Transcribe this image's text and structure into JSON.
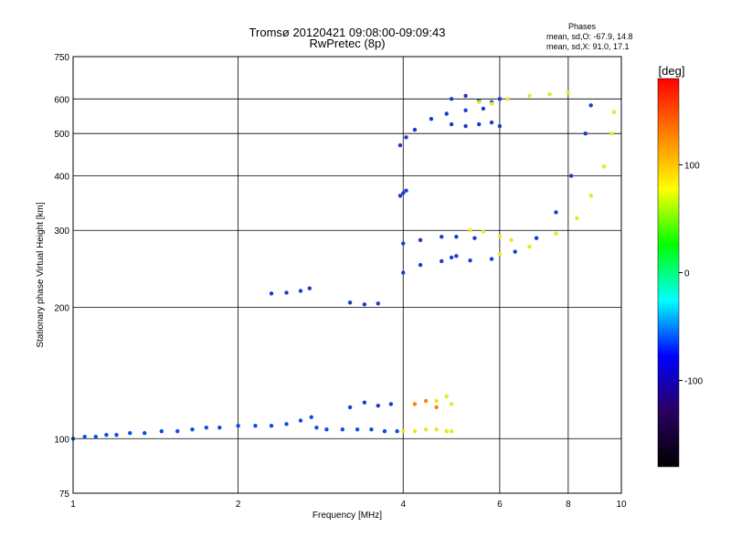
{
  "chart_data": {
    "type": "scatter",
    "title": "Tromsø 20120421 09:08:00-09:09:43",
    "subtitle": "RwPretec (8p)",
    "phases_header": "Phases",
    "phases_stats": [
      "mean, sd,O: -67.9, 14.8",
      "mean, sd,X:  91.0, 17.1"
    ],
    "xlabel": "Frequency [MHz]",
    "ylabel": "Stationary phase Virtual Height [km]",
    "x_scale": "log",
    "y_scale": "log",
    "xlim": [
      1,
      10
    ],
    "ylim": [
      75,
      750
    ],
    "x_ticks": [
      1,
      2,
      4,
      6,
      8,
      10
    ],
    "y_ticks": [
      75,
      100,
      200,
      300,
      400,
      500,
      600,
      750
    ],
    "grid": true,
    "colorbar": {
      "label": "[deg]",
      "range": [
        -180,
        180
      ],
      "ticks": [
        100,
        0,
        -100
      ],
      "colors": [
        "#000000",
        "#2a0060",
        "#0000ff",
        "#00ffff",
        "#00ff00",
        "#ffff00",
        "#ff8000",
        "#ff0000"
      ]
    },
    "series": [
      {
        "color": "#0a4fdc",
        "x": [
          1.0,
          1.05,
          1.1,
          1.15,
          1.2,
          1.27,
          1.35,
          1.45,
          1.55,
          1.65,
          1.75,
          1.85,
          2.0,
          2.15,
          2.3,
          2.45,
          2.6,
          2.72,
          2.78,
          2.9,
          3.1,
          3.3,
          3.5,
          3.7,
          3.9
        ],
        "y": [
          100,
          101,
          101,
          102,
          102,
          103,
          103,
          104,
          104,
          105,
          106,
          106,
          107,
          107,
          107,
          108,
          110,
          112,
          106,
          105,
          105,
          105,
          105,
          104,
          104
        ]
      },
      {
        "color": "#e8e820",
        "x": [
          4.0,
          4.2,
          4.4,
          4.6,
          4.8,
          4.9
        ],
        "y": [
          104,
          104,
          105,
          105,
          104,
          104
        ]
      },
      {
        "color": "#1a3ad0",
        "x": [
          2.3,
          2.45,
          2.6,
          2.7
        ],
        "y": [
          215,
          216,
          218,
          221
        ]
      },
      {
        "color": "#1a3ad0",
        "x": [
          3.2,
          3.4,
          3.6
        ],
        "y": [
          205,
          203,
          204
        ]
      },
      {
        "color": "#1a3ad0",
        "x": [
          3.95,
          4.05,
          4.2,
          4.5,
          4.8,
          5.2,
          5.6
        ],
        "y": [
          470,
          490,
          510,
          540,
          555,
          565,
          570
        ]
      },
      {
        "color": "#1a3ad0",
        "x": [
          3.95,
          4.0,
          4.05
        ],
        "y": [
          360,
          365,
          370
        ]
      },
      {
        "color": "#1a3ad0",
        "x": [
          4.9,
          5.2,
          5.5,
          5.8,
          6.0
        ],
        "y": [
          600,
          610,
          595,
          590,
          600
        ]
      },
      {
        "color": "#1a3ad0",
        "x": [
          4.9,
          5.2,
          5.5,
          5.8,
          6.0
        ],
        "y": [
          525,
          520,
          525,
          530,
          520
        ]
      },
      {
        "color": "#e8e820",
        "x": [
          5.5,
          5.8,
          6.2,
          6.8,
          7.4,
          8.0
        ],
        "y": [
          590,
          585,
          600,
          610,
          615,
          620
        ]
      },
      {
        "color": "#1a3ad0",
        "x": [
          4.0,
          4.3,
          4.7,
          5.0,
          5.4
        ],
        "y": [
          280,
          285,
          290,
          290,
          288
        ]
      },
      {
        "color": "#1a3ad0",
        "x": [
          4.0,
          4.3,
          4.7,
          5.0
        ],
        "y": [
          240,
          250,
          255,
          262
        ]
      },
      {
        "color": "#e8e820",
        "x": [
          5.3,
          5.6,
          6.0,
          6.3
        ],
        "y": [
          300,
          298,
          290,
          285
        ]
      },
      {
        "color": "#1a3ad0",
        "x": [
          4.9,
          5.3,
          5.8,
          6.4,
          7.0,
          7.6,
          8.1,
          8.6,
          8.8
        ],
        "y": [
          260,
          256,
          258,
          268,
          288,
          330,
          400,
          500,
          580
        ]
      },
      {
        "color": "#e8e820",
        "x": [
          6.0,
          6.8,
          7.6,
          8.3,
          8.8,
          9.3,
          9.6,
          9.7
        ],
        "y": [
          265,
          275,
          295,
          320,
          360,
          420,
          500,
          560
        ]
      },
      {
        "color": "#1a3ad0",
        "x": [
          3.2,
          3.4,
          3.6,
          3.8
        ],
        "y": [
          118,
          121,
          119,
          120
        ]
      },
      {
        "color": "#ff8000",
        "x": [
          4.2,
          4.4,
          4.6
        ],
        "y": [
          120,
          122,
          118
        ]
      },
      {
        "color": "#e8e820",
        "x": [
          4.6,
          4.8,
          4.9
        ],
        "y": [
          122,
          125,
          120
        ]
      }
    ]
  }
}
